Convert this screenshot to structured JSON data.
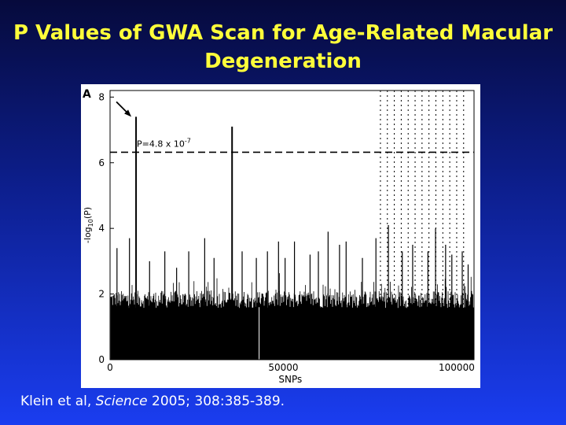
{
  "slide": {
    "title_line1": "P Values of GWA Scan for Age-Related Macular",
    "title_line2": "Degeneration",
    "citation_prefix": "Klein et al, ",
    "citation_journal": "Science",
    "citation_suffix": " 2005; 308:385-389."
  },
  "colors": {
    "title": "#ffff3a",
    "citation": "#ffffff",
    "plot_background": "#ffffff",
    "data": "#000000"
  },
  "chart_data": {
    "type": "bar",
    "panel_label": "A",
    "xlabel": "SNPs",
    "ylabel": "-log10(P)",
    "xlim": [
      0,
      105000
    ],
    "ylim": [
      0,
      8.2
    ],
    "xticks": [
      0,
      50000,
      100000
    ],
    "yticks": [
      0,
      2,
      4,
      6,
      8
    ],
    "background_band_max": 2.1,
    "threshold": {
      "value": 6.32,
      "label": "P=4.8 x 10",
      "exponent": "-7",
      "style": "dashed"
    },
    "arrow": {
      "points_to_x": 7500,
      "points_to_y": 7.4
    },
    "chromosome_boundaries": [
      78000,
      80000,
      82000,
      84000,
      86000,
      88000,
      90000,
      92000,
      94000,
      96000,
      98000,
      100000,
      102000
    ],
    "peaks": [
      {
        "x": 7500,
        "y": 7.4
      },
      {
        "x": 35200,
        "y": 7.1
      },
      {
        "x": 2000,
        "y": 3.4
      },
      {
        "x": 5600,
        "y": 3.7
      },
      {
        "x": 11400,
        "y": 3.0
      },
      {
        "x": 15800,
        "y": 3.3
      },
      {
        "x": 19200,
        "y": 2.8
      },
      {
        "x": 22700,
        "y": 3.3
      },
      {
        "x": 27300,
        "y": 3.7
      },
      {
        "x": 30000,
        "y": 3.1
      },
      {
        "x": 38100,
        "y": 3.3
      },
      {
        "x": 42200,
        "y": 3.1
      },
      {
        "x": 45400,
        "y": 3.3
      },
      {
        "x": 48600,
        "y": 3.6
      },
      {
        "x": 50500,
        "y": 3.1
      },
      {
        "x": 53200,
        "y": 3.6
      },
      {
        "x": 57700,
        "y": 3.2
      },
      {
        "x": 60100,
        "y": 3.3
      },
      {
        "x": 62900,
        "y": 3.9
      },
      {
        "x": 66200,
        "y": 3.5
      },
      {
        "x": 68100,
        "y": 3.6
      },
      {
        "x": 72800,
        "y": 3.1
      },
      {
        "x": 76700,
        "y": 3.7
      },
      {
        "x": 80300,
        "y": 4.1
      },
      {
        "x": 84300,
        "y": 3.3
      },
      {
        "x": 87300,
        "y": 3.5
      },
      {
        "x": 91700,
        "y": 3.3
      },
      {
        "x": 93900,
        "y": 4.0
      },
      {
        "x": 96800,
        "y": 3.5
      },
      {
        "x": 98600,
        "y": 3.2
      },
      {
        "x": 101600,
        "y": 3.3
      },
      {
        "x": 103300,
        "y": 2.9
      }
    ]
  }
}
